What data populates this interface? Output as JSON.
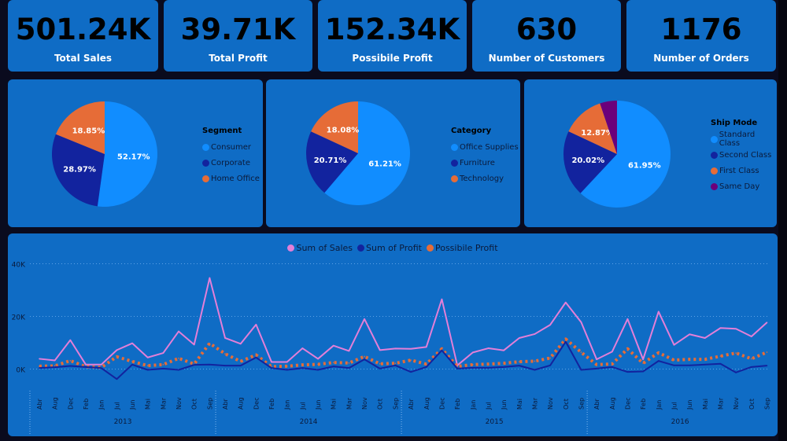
{
  "kpis": [
    {
      "value": "501.24K",
      "label": "Total Sales"
    },
    {
      "value": "39.71K",
      "label": "Total Profit"
    },
    {
      "value": "152.34K",
      "label": "Possibile Profit"
    },
    {
      "value": "630",
      "label": "Number of Customers"
    },
    {
      "value": "1176",
      "label": "Number of Orders"
    }
  ],
  "colors": {
    "card": "#0f6cc5",
    "background": "#0a0b1e",
    "light_blue": "#118dff",
    "dark_blue": "#12239e",
    "orange": "#e66c37",
    "purple": "#6b007b",
    "pink": "#e37fd8"
  },
  "chart_data": [
    {
      "type": "pie",
      "legend_title": "Segment",
      "legend_position": "right",
      "slices": [
        {
          "name": "Consumer",
          "value": 52.17,
          "label": "52.17%",
          "color": "#118dff"
        },
        {
          "name": "Corporate",
          "value": 28.97,
          "label": "28.97%",
          "color": "#12239e"
        },
        {
          "name": "Home Office",
          "value": 18.85,
          "label": "18.85%",
          "color": "#e66c37"
        }
      ]
    },
    {
      "type": "pie",
      "legend_title": "Category",
      "legend_position": "right",
      "slices": [
        {
          "name": "Office Supplies",
          "value": 61.21,
          "label": "61.21%",
          "color": "#118dff"
        },
        {
          "name": "Furniture",
          "value": 20.71,
          "label": "20.71%",
          "color": "#12239e"
        },
        {
          "name": "Technology",
          "value": 18.08,
          "label": "18.08%",
          "color": "#e66c37"
        }
      ]
    },
    {
      "type": "pie",
      "legend_title": "Ship Mode",
      "legend_position": "right",
      "slices": [
        {
          "name": "Standard Class",
          "value": 61.95,
          "label": "61.95%",
          "color": "#118dff"
        },
        {
          "name": "Second Class",
          "value": 20.02,
          "label": "20.02%",
          "color": "#12239e"
        },
        {
          "name": "First Class",
          "value": 12.87,
          "label": "12.87%",
          "color": "#e66c37"
        },
        {
          "name": "Same Day",
          "value": 5.16,
          "label": "",
          "color": "#6b007b"
        }
      ]
    },
    {
      "type": "line",
      "legend_position": "top-center",
      "grid": true,
      "ylim": [
        -10000,
        40000
      ],
      "yticks": [
        {
          "v": 40000,
          "label": "40K"
        },
        {
          "v": 20000,
          "label": "20K"
        },
        {
          "v": 0,
          "label": "0K"
        }
      ],
      "years": [
        "2013",
        "2014",
        "2015",
        "2016"
      ],
      "months": [
        "Abr",
        "Aug",
        "Dec",
        "Feb",
        "Jan",
        "Jul",
        "Jun",
        "Mai",
        "Mar",
        "Nov",
        "Oct",
        "Sep"
      ],
      "series": [
        {
          "name": "Sum of Sales",
          "color": "#e37fd8",
          "style": "solid",
          "values": [
            3900,
            3300,
            11000,
            1700,
            1700,
            7200,
            9800,
            4400,
            6100,
            14300,
            9300,
            34600,
            11800,
            9600,
            16900,
            2700,
            2700,
            7900,
            3900,
            8900,
            6900,
            19000,
            7200,
            7800,
            7700,
            8400,
            26500,
            1400,
            6300,
            7900,
            7100,
            11800,
            13300,
            16800,
            25300,
            17800,
            3700,
            6600,
            19000,
            3700,
            21800,
            9200,
            13200,
            11800,
            15600,
            15300,
            12400,
            17700
          ]
        },
        {
          "name": "Sum of Profit",
          "color": "#12239e",
          "style": "solid",
          "values": [
            400,
            700,
            1200,
            800,
            400,
            -3800,
            1700,
            -300,
            200,
            -300,
            1600,
            1700,
            1300,
            1300,
            4400,
            400,
            -300,
            400,
            -300,
            1000,
            400,
            3700,
            200,
            1400,
            -1100,
            800,
            7100,
            200,
            500,
            500,
            800,
            1300,
            -300,
            1400,
            10400,
            -300,
            200,
            800,
            -1100,
            -900,
            3100,
            1400,
            1400,
            1700,
            2000,
            -1300,
            800,
            1300
          ]
        },
        {
          "name": "Possibile Profit",
          "color": "#e66c37",
          "style": "dotted",
          "values": [
            1100,
            1200,
            3200,
            900,
            600,
            4700,
            2900,
            1300,
            1700,
            4100,
            1900,
            9800,
            5800,
            2900,
            5400,
            900,
            1100,
            1600,
            1800,
            2500,
            2300,
            4800,
            2000,
            2200,
            3400,
            1900,
            7700,
            1000,
            1700,
            1900,
            2200,
            2800,
            3000,
            4200,
            11400,
            6400,
            1700,
            1900,
            7700,
            2200,
            6200,
            3400,
            3700,
            3700,
            4900,
            6100,
            3900,
            6400
          ]
        }
      ]
    }
  ]
}
